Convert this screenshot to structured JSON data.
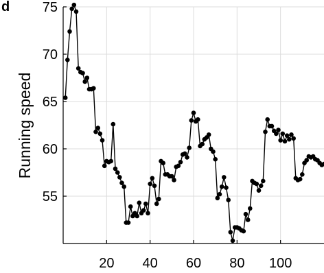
{
  "title_fragment": "d",
  "chart_data": {
    "type": "line",
    "title": "",
    "xlabel": "",
    "ylabel": "Running speed",
    "xlim": [
      0,
      120
    ],
    "ylim": [
      50,
      75
    ],
    "xticks": [
      20,
      40,
      60,
      80,
      100
    ],
    "yticks": [
      55,
      60,
      65,
      70,
      75
    ],
    "grid": true,
    "series": [
      {
        "name": "",
        "color": "#000000",
        "marker": "circle",
        "x": [
          1,
          2,
          3,
          4,
          5,
          6,
          7,
          8,
          9,
          10,
          11,
          12,
          13,
          14,
          15,
          16,
          17,
          18,
          19,
          20,
          21,
          22,
          23,
          24,
          25,
          26,
          27,
          28,
          29,
          30,
          31,
          32,
          33,
          34,
          35,
          36,
          37,
          38,
          39,
          40,
          41,
          42,
          43,
          44,
          45,
          46,
          47,
          48,
          49,
          50,
          51,
          52,
          53,
          54,
          55,
          56,
          57,
          58,
          59,
          60,
          61,
          62,
          63,
          64,
          65,
          66,
          67,
          68,
          69,
          70,
          71,
          72,
          73,
          74,
          75,
          76,
          77,
          78,
          79,
          80,
          81,
          82,
          83,
          84,
          85,
          86,
          87,
          88,
          89,
          90,
          91,
          92,
          93,
          94,
          95,
          96,
          97,
          98,
          99,
          100,
          101,
          102,
          103,
          104,
          105,
          106,
          107,
          108,
          109,
          110,
          111,
          112,
          113,
          114,
          115,
          116,
          117,
          118,
          119,
          120
        ],
        "y": [
          65.4,
          69.4,
          72.4,
          74.8,
          75.2,
          74.5,
          68.5,
          68.1,
          68.0,
          67.1,
          67.5,
          66.3,
          66.3,
          66.4,
          61.8,
          62.2,
          61.6,
          60.9,
          58.2,
          58.7,
          58.6,
          58.7,
          62.6,
          57.9,
          57.5,
          57.0,
          56.4,
          56.0,
          52.2,
          52.2,
          53.9,
          52.9,
          53.2,
          52.9,
          54.3,
          53.2,
          53.5,
          54.2,
          53.2,
          56.3,
          56.9,
          56.1,
          54.2,
          54.7,
          58.7,
          58.5,
          57.3,
          57.3,
          57.1,
          57.1,
          56.7,
          58.1,
          58.2,
          58.6,
          59.4,
          59.5,
          59.1,
          60.1,
          63.0,
          63.8,
          62.9,
          63.1,
          60.3,
          60.5,
          61.0,
          61.2,
          61.5,
          60.0,
          59.7,
          58.9,
          54.8,
          55.2,
          56.0,
          57.0,
          55.9,
          54.6,
          51.2,
          50.3,
          51.7,
          51.7,
          51.6,
          51.4,
          51.3,
          53.1,
          52.5,
          53.7,
          56.6,
          56.4,
          56.3,
          55.6,
          56.1,
          56.6,
          61.8,
          63.1,
          62.4,
          62.4,
          61.9,
          61.6,
          62.0,
          60.9,
          61.6,
          60.8,
          61.4,
          61.0,
          61.5,
          61.1,
          56.9,
          56.7,
          56.8,
          57.3,
          58.5,
          58.8,
          59.2,
          59.1,
          59.2,
          58.9,
          58.8,
          58.5,
          58.3,
          58.4
        ]
      }
    ]
  }
}
